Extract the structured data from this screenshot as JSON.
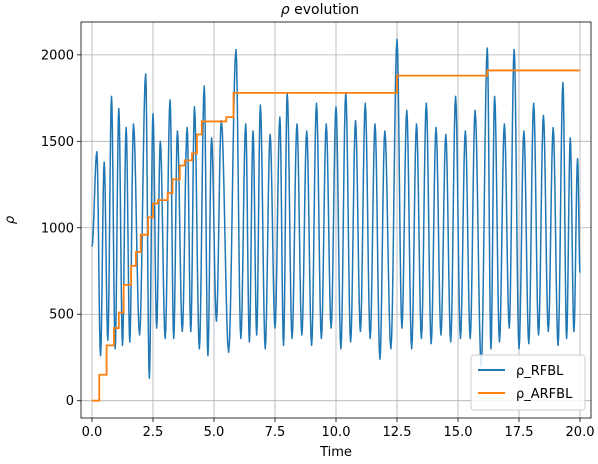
{
  "chart_data": {
    "type": "line",
    "title_symbol": "ρ",
    "title_rest": " evolution",
    "xlabel": "Time",
    "ylabel": "ρ",
    "xlim": [
      -0.45,
      20.45
    ],
    "ylim": [
      -100,
      2190
    ],
    "xticks": [
      0.0,
      2.5,
      5.0,
      7.5,
      10.0,
      12.5,
      15.0,
      17.5,
      20.0
    ],
    "xtick_labels": [
      "0.0",
      "2.5",
      "5.0",
      "7.5",
      "10.0",
      "12.5",
      "15.0",
      "17.5",
      "20.0"
    ],
    "yticks": [
      0,
      500,
      1000,
      1500,
      2000
    ],
    "ytick_labels": [
      "0",
      "500",
      "1000",
      "1500",
      "2000"
    ],
    "grid": true,
    "legend_position": "lower right",
    "series": [
      {
        "name": "ρ_RFBL",
        "color": "#1f77b4",
        "oscillation": {
          "peak_times": [
            0.2,
            0.5,
            0.8,
            1.1,
            1.4,
            1.7,
            2.2,
            2.5,
            2.8,
            3.2,
            3.5,
            3.9,
            4.2,
            4.6,
            4.9,
            5.3,
            5.9,
            6.3,
            6.6,
            6.9,
            7.3,
            7.7,
            8.0,
            8.4,
            8.8,
            9.2,
            9.6,
            10.0,
            10.4,
            10.8,
            11.2,
            11.6,
            12.0,
            12.5,
            12.9,
            13.3,
            13.7,
            14.1,
            14.5,
            14.9,
            15.3,
            15.7,
            16.2,
            16.5,
            16.9,
            17.3,
            17.7,
            18.1,
            18.5,
            18.9,
            19.3,
            19.6,
            19.9
          ],
          "peak_values": [
            1440,
            1380,
            1760,
            1690,
            1580,
            1600,
            1890,
            1660,
            1500,
            1740,
            1560,
            1580,
            1700,
            1820,
            1520,
            1620,
            2030,
            1600,
            1560,
            1710,
            1540,
            1640,
            1780,
            1600,
            1560,
            1720,
            1600,
            1700,
            1780,
            1620,
            1720,
            1600,
            1560,
            2090,
            1680,
            1600,
            1720,
            1580,
            1540,
            1760,
            1560,
            1680,
            2040,
            1760,
            1600,
            2030,
            1560,
            1720,
            1650,
            1580,
            1840,
            1520,
            1400
          ],
          "trough_times": [
            0.0,
            0.35,
            0.65,
            0.95,
            1.25,
            1.55,
            1.95,
            2.35,
            2.65,
            3.0,
            3.35,
            3.7,
            4.05,
            4.4,
            4.75,
            5.1,
            5.6,
            6.1,
            6.45,
            6.75,
            7.1,
            7.5,
            7.85,
            8.2,
            8.6,
            9.0,
            9.4,
            9.8,
            10.2,
            10.6,
            11.0,
            11.4,
            11.8,
            12.25,
            12.7,
            13.1,
            13.5,
            13.9,
            14.3,
            14.7,
            15.1,
            15.5,
            15.95,
            16.35,
            16.7,
            17.1,
            17.5,
            17.9,
            18.3,
            18.7,
            19.1,
            19.45,
            19.75,
            20.0
          ],
          "trough_values": [
            890,
            260,
            350,
            300,
            320,
            340,
            380,
            130,
            420,
            360,
            360,
            400,
            400,
            300,
            260,
            460,
            280,
            360,
            340,
            380,
            300,
            420,
            320,
            360,
            380,
            320,
            360,
            420,
            300,
            340,
            400,
            360,
            240,
            300,
            420,
            300,
            360,
            330,
            380,
            340,
            360,
            360,
            200,
            300,
            340,
            420,
            300,
            330,
            380,
            400,
            320,
            360,
            400,
            740
          ]
        }
      },
      {
        "name": "ρ_ARFBL",
        "color": "#ff7f0e",
        "step_times": [
          0.0,
          0.3,
          0.6,
          0.9,
          1.1,
          1.3,
          1.6,
          1.8,
          2.0,
          2.3,
          2.5,
          2.7,
          3.1,
          3.3,
          3.6,
          3.8,
          4.1,
          4.3,
          4.5,
          5.5,
          5.8,
          12.5,
          16.2
        ],
        "step_values": [
          0,
          150,
          320,
          420,
          510,
          670,
          780,
          860,
          960,
          1060,
          1140,
          1160,
          1200,
          1280,
          1360,
          1390,
          1430,
          1540,
          1615,
          1640,
          1780,
          1880,
          1910
        ],
        "end_time": 20.0
      }
    ]
  }
}
